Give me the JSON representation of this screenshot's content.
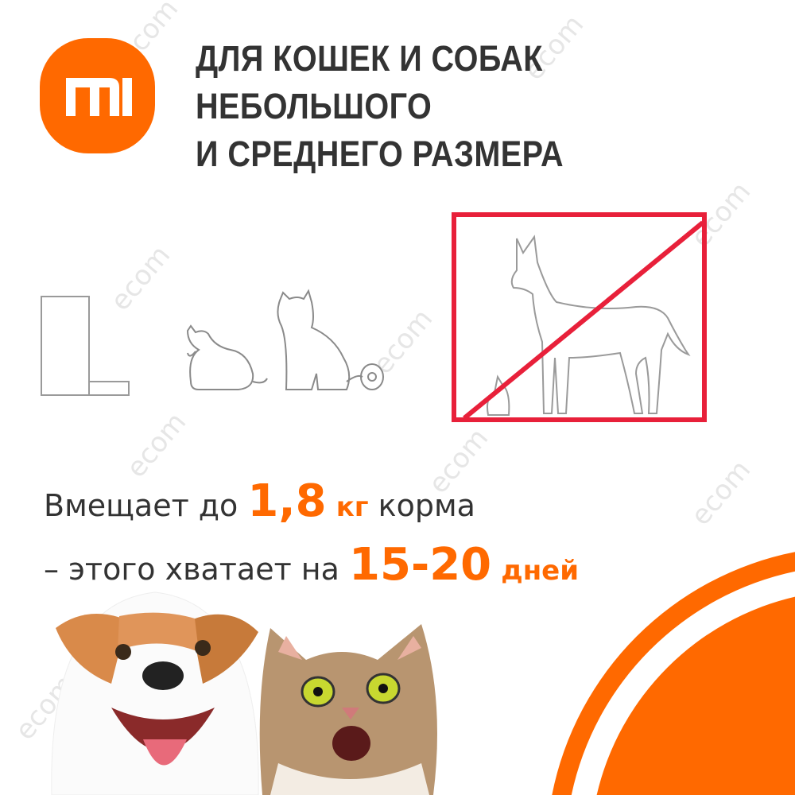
{
  "brand": {
    "logo_text": "MI",
    "color": "#ff6900"
  },
  "title": {
    "lines": [
      "ДЛЯ КОШЕК И СОБАК",
      "НЕБОЛЬШОГО",
      "И СРЕДНЕГО РАЗМЕРА"
    ]
  },
  "icons": [
    "feeder-outline-icon",
    "small-cat-icon",
    "medium-cat-icon",
    "large-dog-crossed-out-icon"
  ],
  "capacity": {
    "prefix": "Вмещает до",
    "value": "1,8",
    "unit": "кг",
    "suffix": "корма"
  },
  "duration": {
    "prefix": "– этого хватает на",
    "value": "15-20",
    "unit": "дней"
  },
  "watermark": "ecom",
  "colors": {
    "accent": "#ff6900",
    "text": "#333333",
    "prohibit": "#e8203a",
    "outline": "#9a9a9a"
  }
}
